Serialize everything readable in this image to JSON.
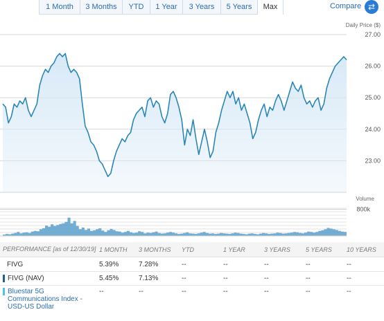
{
  "range_tabs": [
    {
      "label": "1 Month",
      "active": false
    },
    {
      "label": "3 Months",
      "active": false
    },
    {
      "label": "YTD",
      "active": false
    },
    {
      "label": "1 Year",
      "active": false
    },
    {
      "label": "3 Years",
      "active": false
    },
    {
      "label": "5 Years",
      "active": false
    },
    {
      "label": "Max",
      "active": true
    }
  ],
  "compare": {
    "label": "Compare",
    "icon": "swap-arrows-icon"
  },
  "colors": {
    "line": "#2a87b5",
    "area": "#d5e8f6",
    "volume": "#5b9fca",
    "index_swatch": "#4ec3e8",
    "nav_swatch": "#1f5f96"
  },
  "chart_data": [
    {
      "type": "line",
      "title": "",
      "ylabel": "Daily Price ($)",
      "ylim": [
        22,
        27
      ],
      "y_ticks": [
        23,
        24,
        25,
        26,
        27
      ],
      "y_tick_labels": [
        "23.00",
        "24.00",
        "25.00",
        "26.00",
        "27.00"
      ],
      "grid": true,
      "x_labels": [],
      "y": [
        24.8,
        24.7,
        24.2,
        24.4,
        24.8,
        24.7,
        24.9,
        24.8,
        25.0,
        24.6,
        24.4,
        24.6,
        24.8,
        25.4,
        25.7,
        25.9,
        25.8,
        26.0,
        26.1,
        26.3,
        26.4,
        26.3,
        26.4,
        26.0,
        25.8,
        25.9,
        25.8,
        25.6,
        24.8,
        24.1,
        23.9,
        23.6,
        23.5,
        23.3,
        23.0,
        22.9,
        22.7,
        22.5,
        22.6,
        23.0,
        23.3,
        23.5,
        23.7,
        23.6,
        23.8,
        23.9,
        24.3,
        24.5,
        24.6,
        24.7,
        24.4,
        24.9,
        25.0,
        24.7,
        24.9,
        24.8,
        24.4,
        24.2,
        24.5,
        25.1,
        25.2,
        25.0,
        24.7,
        24.3,
        23.5,
        24.0,
        23.8,
        24.3,
        23.7,
        23.2,
        23.6,
        24.0,
        23.6,
        23.1,
        23.3,
        23.9,
        24.2,
        24.6,
        24.9,
        25.2,
        25.0,
        25.2,
        24.8,
        25.0,
        24.6,
        24.8,
        24.5,
        24.2,
        23.7,
        23.9,
        24.3,
        24.6,
        24.8,
        24.4,
        24.7,
        24.6,
        24.9,
        25.1,
        24.9,
        24.6,
        24.9,
        25.2,
        25.5,
        25.3,
        25.2,
        25.4,
        25.0,
        24.8,
        24.9,
        24.7,
        24.9,
        25.0,
        24.6,
        24.8,
        25.3,
        25.6,
        25.8,
        26.0,
        26.1,
        26.2,
        26.3,
        26.2
      ]
    },
    {
      "type": "bar",
      "title": "",
      "ylabel": "Volume",
      "ylim": [
        0,
        1000000
      ],
      "y_ticks": [
        800000
      ],
      "y_tick_labels": [
        "800k"
      ],
      "values": [
        40000,
        60000,
        50000,
        70000,
        90000,
        120000,
        80000,
        100000,
        110000,
        90000,
        130000,
        150000,
        140000,
        200000,
        230000,
        310000,
        280000,
        350000,
        300000,
        330000,
        360000,
        380000,
        420000,
        550000,
        380000,
        450000,
        300000,
        200000,
        250000,
        180000,
        220000,
        150000,
        170000,
        200000,
        230000,
        160000,
        120000,
        170000,
        210000,
        180000,
        140000,
        130000,
        100000,
        120000,
        150000,
        110000,
        90000,
        100000,
        140000,
        120000,
        80000,
        100000,
        90000,
        110000,
        130000,
        90000,
        70000,
        80000,
        100000,
        120000,
        100000,
        80000,
        60000,
        70000,
        90000,
        110000,
        80000,
        70000,
        60000,
        80000,
        100000,
        120000,
        90000,
        70000,
        80000,
        60000,
        70000,
        90000,
        80000,
        70000,
        60000,
        80000,
        100000,
        90000,
        70000,
        60000,
        50000,
        70000,
        80000,
        60000,
        50000,
        70000,
        90000,
        80000,
        60000,
        70000,
        80000,
        100000,
        90000,
        70000,
        80000,
        90000,
        100000,
        120000,
        110000,
        90000,
        80000,
        100000,
        130000,
        120000,
        100000,
        120000,
        150000,
        170000,
        200000,
        240000,
        220000,
        200000,
        180000,
        150000,
        130000,
        120000
      ]
    }
  ],
  "performance": {
    "header": {
      "title": "PERFORMANCE [as of 12/30/19]",
      "columns": [
        "1 MONTH",
        "3 MONTHS",
        "YTD",
        "1 YEAR",
        "3 YEARS",
        "5 YEARS",
        "10 YEARS"
      ]
    },
    "rows": [
      {
        "name": "FIVG",
        "values": [
          "5.39%",
          "7.28%",
          "--",
          "--",
          "--",
          "--",
          "--"
        ]
      },
      {
        "name": "FIVG (NAV)",
        "values": [
          "5.45%",
          "7.13%",
          "--",
          "--",
          "--",
          "--",
          "--"
        ]
      },
      {
        "name": "Bluestar 5G Communications Index - USD-US Dollar",
        "values": [
          "--",
          "--",
          "--",
          "--",
          "--",
          "--",
          "--"
        ]
      }
    ]
  }
}
